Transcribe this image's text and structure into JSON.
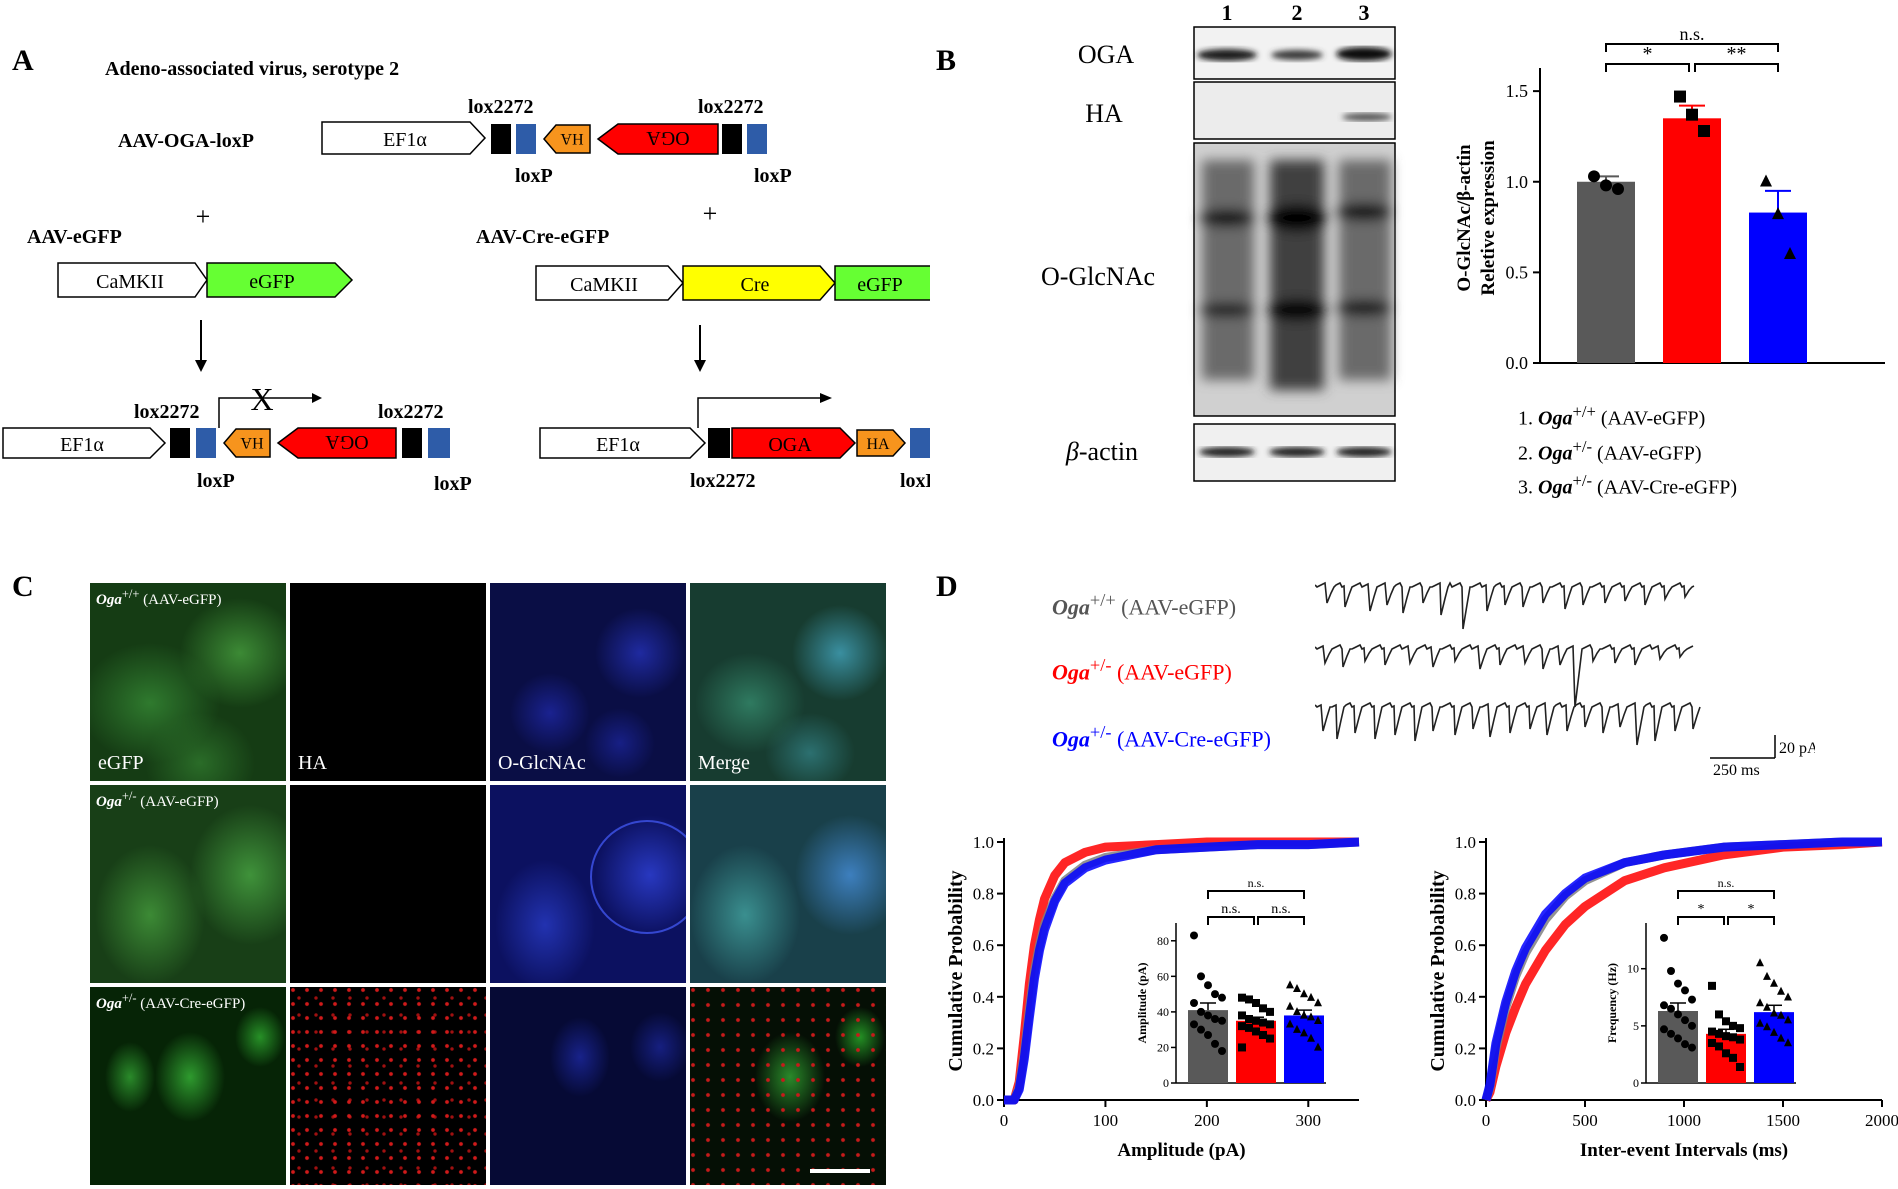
{
  "panels": {
    "A": "A",
    "B": "B",
    "C": "C",
    "D": "D"
  },
  "panel_a": {
    "title": "Adeno-associated virus, serotype 2",
    "construct_oga": "AAV-OGA-loxP",
    "construct_egfp": "AAV-eGFP",
    "construct_cre": "AAV-Cre-eGFP",
    "plus": "+",
    "ef1a": "EF1α",
    "camkii": "CaMKII",
    "egfp": "eGFP",
    "cre": "Cre",
    "oga": "OGA",
    "ha": "HA",
    "lox2272": "lox2272",
    "loxp": "loxP",
    "blocked": "X",
    "colors": {
      "oga": "#ff0000",
      "ha": "#f7941d",
      "egfp": "#66ff33",
      "cre": "#ffff00",
      "lox2272": "#000000",
      "loxp": "#2e5ca8"
    }
  },
  "panel_b": {
    "lanes": [
      "1",
      "2",
      "3"
    ],
    "blot_labels": {
      "oga": "OGA",
      "ha": "HA",
      "oglcnac": "O-GlcNAc",
      "bactin_greek": "β",
      "bactin_rest": "-actin"
    },
    "legend": [
      {
        "num": "1.",
        "gene": "Oga",
        "sup": "+/+",
        "virus": "(AAV-eGFP)"
      },
      {
        "num": "2.",
        "gene": "Oga",
        "sup": "+/-",
        "virus": "(AAV-eGFP)"
      },
      {
        "num": "3.",
        "gene": "Oga",
        "sup": "+/-",
        "virus": "(AAV-Cre-eGFP)"
      }
    ]
  },
  "panel_c": {
    "columns": [
      "eGFP",
      "HA",
      "O-GlcNAc",
      "Merge"
    ],
    "rows": [
      {
        "gene": "Oga",
        "sup": "+/+",
        "virus": "(AAV-eGFP)"
      },
      {
        "gene": "Oga",
        "sup": "+/-",
        "virus": "(AAV-eGFP)"
      },
      {
        "gene": "Oga",
        "sup": "+/-",
        "virus": "(AAV-Cre-eGFP)"
      }
    ]
  },
  "panel_d": {
    "traces": [
      {
        "gene": "Oga",
        "sup": "+/+",
        "virus": "(AAV-eGFP)",
        "color": "#555555"
      },
      {
        "gene": "Oga",
        "sup": "+/-",
        "virus": "(AAV-eGFP)",
        "color": "#ff0000"
      },
      {
        "gene": "Oga",
        "sup": "+/-",
        "virus": "(AAV-Cre-eGFP)",
        "color": "#0000ff"
      }
    ],
    "scale_amp": "20 pA",
    "scale_time": "250 ms"
  },
  "chart_data": [
    {
      "type": "bar",
      "categories": [
        "1",
        "2",
        "3"
      ],
      "values": [
        1.0,
        1.35,
        0.83
      ],
      "errors": [
        0.03,
        0.07,
        0.12
      ],
      "points": [
        [
          1.03,
          0.98,
          0.96
        ],
        [
          1.47,
          1.37,
          1.28
        ],
        [
          1.0,
          0.82,
          0.6
        ]
      ],
      "colors": [
        "#595959",
        "#ff0000",
        "#0000ff"
      ],
      "ylabel_line1": "O-GlcNAc/β-actin",
      "ylabel_line2": "Reletive expression",
      "ylim": [
        0,
        1.6
      ],
      "yticks": [
        "0.0",
        "0.5",
        "1.0",
        "1.5"
      ],
      "significance": [
        "*",
        "**",
        "n.s."
      ]
    },
    {
      "type": "line",
      "xlabel": "Amplitude (pA)",
      "ylabel": "Cumulative Probability",
      "xticks": [
        "0",
        "100",
        "200",
        "300"
      ],
      "yticks": [
        "0.0",
        "0.2",
        "0.4",
        "0.6",
        "0.8",
        "1.0"
      ],
      "xlim": [
        0,
        350
      ],
      "ylim": [
        0,
        1.0
      ],
      "series": [
        {
          "color": "#808080",
          "x": [
            0,
            10,
            15,
            20,
            25,
            30,
            35,
            40,
            50,
            60,
            80,
            100,
            150,
            200,
            250,
            300,
            350
          ],
          "y": [
            0,
            0,
            0.05,
            0.18,
            0.35,
            0.5,
            0.6,
            0.68,
            0.78,
            0.85,
            0.91,
            0.94,
            0.97,
            0.98,
            0.99,
            0.99,
            1.0
          ]
        },
        {
          "color": "#ff0000",
          "x": [
            0,
            10,
            15,
            20,
            25,
            30,
            35,
            40,
            50,
            60,
            80,
            100,
            150,
            200,
            250,
            300,
            350
          ],
          "y": [
            0,
            0,
            0.07,
            0.25,
            0.45,
            0.6,
            0.7,
            0.78,
            0.87,
            0.92,
            0.96,
            0.98,
            0.99,
            1.0,
            1.0,
            1.0,
            1.0
          ]
        },
        {
          "color": "#0000ff",
          "x": [
            0,
            10,
            15,
            20,
            25,
            30,
            35,
            40,
            50,
            60,
            80,
            100,
            150,
            200,
            250,
            300,
            350
          ],
          "y": [
            0,
            0,
            0.04,
            0.16,
            0.32,
            0.47,
            0.58,
            0.66,
            0.77,
            0.84,
            0.9,
            0.93,
            0.97,
            0.98,
            0.99,
            0.99,
            1.0
          ]
        }
      ],
      "inset": {
        "type": "bar",
        "categories": [
          "1",
          "2",
          "3"
        ],
        "values": [
          41,
          35,
          38
        ],
        "errors": [
          4,
          2,
          3
        ],
        "colors": [
          "#595959",
          "#ff0000",
          "#0000ff"
        ],
        "ylabel": "Amplitude (pA)",
        "ylim": [
          0,
          90
        ],
        "yticks": [
          "0",
          "20",
          "40",
          "60",
          "80"
        ],
        "points": [
          [
            83,
            60,
            55,
            50,
            48,
            45,
            40,
            38,
            36,
            35,
            33,
            30,
            27,
            22,
            18
          ],
          [
            48,
            47,
            45,
            42,
            40,
            38,
            36,
            35,
            34,
            33,
            32,
            31,
            29,
            27,
            25,
            20
          ],
          [
            55,
            53,
            50,
            48,
            45,
            43,
            40,
            38,
            37,
            35,
            33,
            30,
            28,
            25,
            20
          ]
        ],
        "significance": [
          "n.s.",
          "n.s.",
          "n.s."
        ]
      }
    },
    {
      "type": "line",
      "xlabel": "Inter-event Intervals (ms)",
      "ylabel": "Cumulative Probability",
      "xticks": [
        "0",
        "500",
        "1000",
        "1500",
        "2000"
      ],
      "yticks": [
        "0.0",
        "0.2",
        "0.4",
        "0.6",
        "0.8",
        "1.0"
      ],
      "xlim": [
        0,
        2000
      ],
      "ylim": [
        0,
        1.0
      ],
      "series": [
        {
          "color": "#808080",
          "x": [
            0,
            20,
            50,
            100,
            150,
            200,
            300,
            400,
            500,
            700,
            900,
            1200,
            1500,
            1800,
            2000
          ],
          "y": [
            0,
            0.05,
            0.2,
            0.36,
            0.48,
            0.57,
            0.7,
            0.79,
            0.85,
            0.92,
            0.95,
            0.98,
            0.99,
            1.0,
            1.0
          ]
        },
        {
          "color": "#ff0000",
          "x": [
            0,
            20,
            50,
            100,
            150,
            200,
            300,
            400,
            500,
            700,
            900,
            1200,
            1500,
            1800,
            2000
          ],
          "y": [
            0,
            0.03,
            0.13,
            0.26,
            0.36,
            0.45,
            0.58,
            0.68,
            0.75,
            0.85,
            0.9,
            0.95,
            0.98,
            0.99,
            1.0
          ]
        },
        {
          "color": "#0000ff",
          "x": [
            0,
            20,
            50,
            100,
            150,
            200,
            300,
            400,
            500,
            700,
            900,
            1200,
            1500,
            1800,
            2000
          ],
          "y": [
            0,
            0.06,
            0.22,
            0.38,
            0.5,
            0.59,
            0.72,
            0.8,
            0.86,
            0.92,
            0.95,
            0.98,
            0.99,
            1.0,
            1.0
          ]
        }
      ],
      "inset": {
        "type": "bar",
        "categories": [
          "1",
          "2",
          "3"
        ],
        "values": [
          6.3,
          4.3,
          6.2
        ],
        "errors": [
          0.7,
          0.4,
          0.6
        ],
        "colors": [
          "#595959",
          "#ff0000",
          "#0000ff"
        ],
        "ylabel": "Frequency (Hz)",
        "ylim": [
          0,
          14
        ],
        "yticks": [
          "0",
          "5",
          "10"
        ],
        "points": [
          [
            12.7,
            9.8,
            8.7,
            8.1,
            7.3,
            6.8,
            6.5,
            6.0,
            5.5,
            5.0,
            4.7,
            4.3,
            3.9,
            3.4,
            3.1
          ],
          [
            8.5,
            6.0,
            5.4,
            5.0,
            4.8,
            4.5,
            4.3,
            4.1,
            4.0,
            3.8,
            3.5,
            3.2,
            2.6,
            2.2,
            1.4
          ],
          [
            10.5,
            9.3,
            8.7,
            8.0,
            7.5,
            7.0,
            6.6,
            6.1,
            5.9,
            5.5,
            5.2,
            4.9,
            4.4,
            3.9,
            3.5
          ]
        ],
        "significance": [
          "*",
          "*",
          "n.s."
        ]
      }
    }
  ]
}
